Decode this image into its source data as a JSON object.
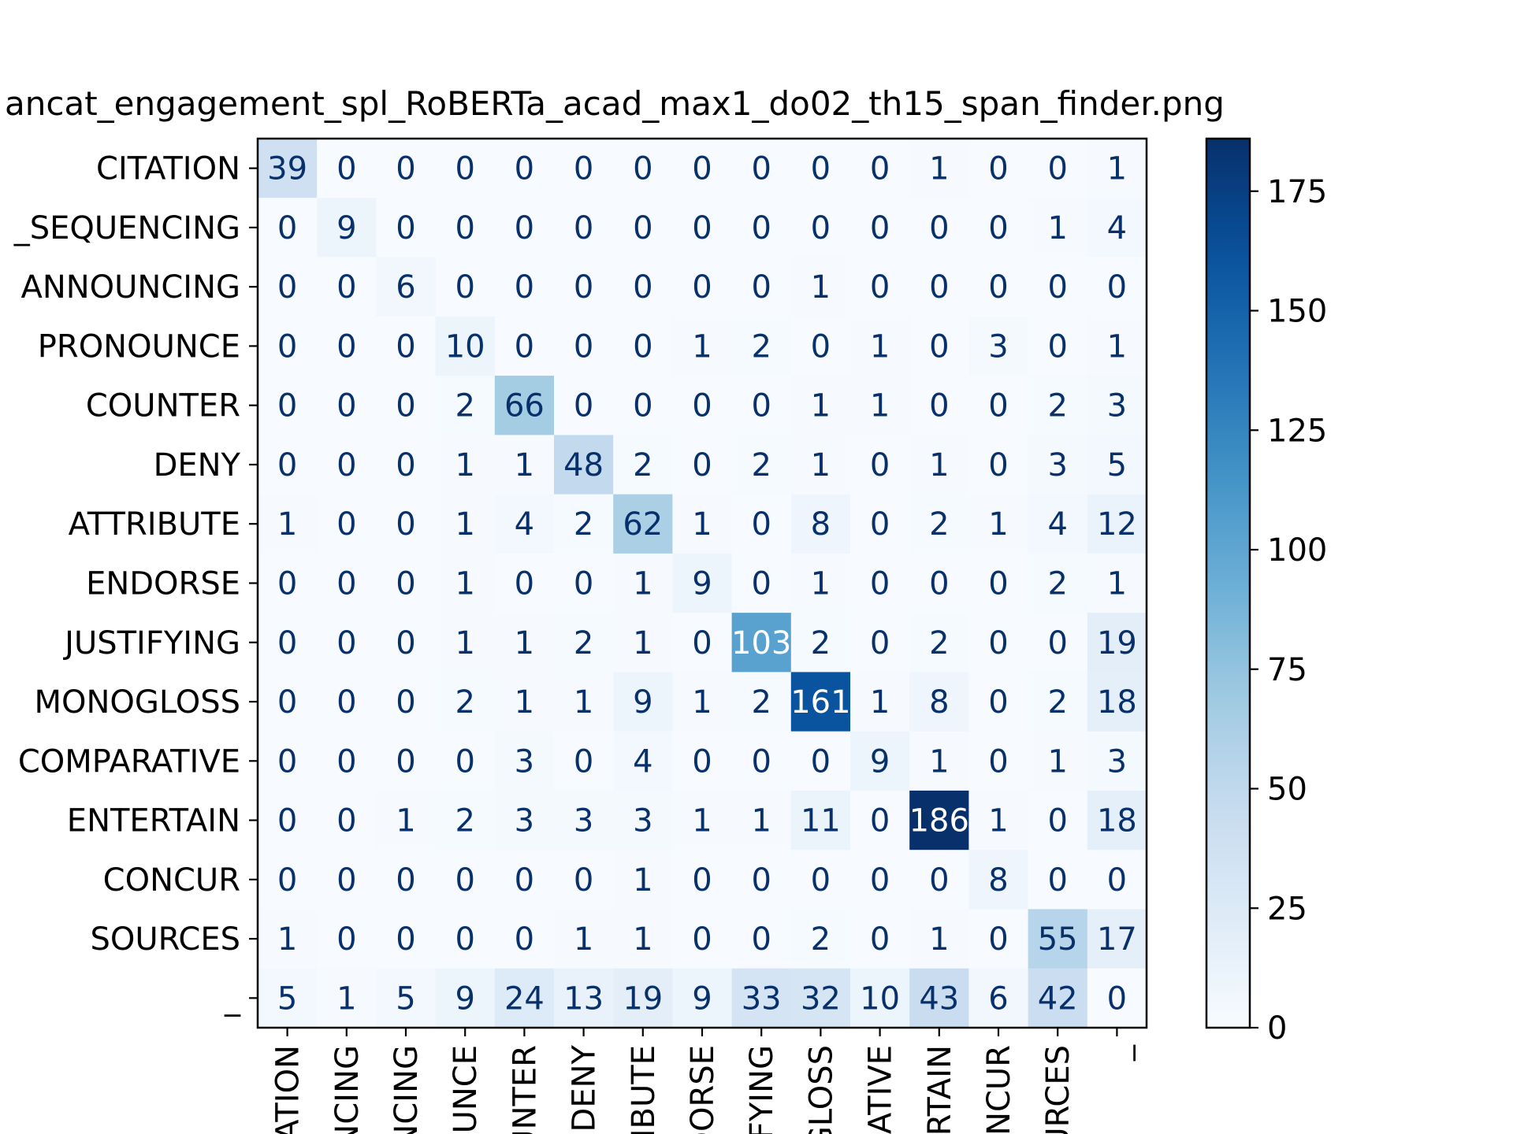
{
  "chart_data": {
    "type": "heatmap",
    "title": "ancat_engagement_spl_RoBERTa_acad_max1_do02_th15_span_finder.png",
    "row_labels": [
      "CITATION",
      "_SEQUENCING",
      "ANNOUNCING",
      "PRONOUNCE",
      "COUNTER",
      "DENY",
      "ATTRIBUTE",
      "ENDORSE",
      "JUSTIFYING",
      "MONOGLOSS",
      "COMPARATIVE",
      "ENTERTAIN",
      "CONCUR",
      "SOURCES",
      "_"
    ],
    "col_labels": [
      "ATION",
      "NCING",
      "NCING",
      "OUNCE",
      "UNTER",
      "DENY",
      "IBUTE",
      "DORSE",
      "IFYING",
      "GLOSS",
      "RATIVE",
      "RTAIN",
      "ONCUR",
      "URCES",
      "_"
    ],
    "matrix": [
      [
        39,
        0,
        0,
        0,
        0,
        0,
        0,
        0,
        0,
        0,
        0,
        1,
        0,
        0,
        1
      ],
      [
        0,
        9,
        0,
        0,
        0,
        0,
        0,
        0,
        0,
        0,
        0,
        0,
        0,
        1,
        4
      ],
      [
        0,
        0,
        6,
        0,
        0,
        0,
        0,
        0,
        0,
        1,
        0,
        0,
        0,
        0,
        0
      ],
      [
        0,
        0,
        0,
        10,
        0,
        0,
        0,
        1,
        2,
        0,
        1,
        0,
        3,
        0,
        1
      ],
      [
        0,
        0,
        0,
        2,
        66,
        0,
        0,
        0,
        0,
        1,
        1,
        0,
        0,
        2,
        3
      ],
      [
        0,
        0,
        0,
        1,
        1,
        48,
        2,
        0,
        2,
        1,
        0,
        1,
        0,
        3,
        5
      ],
      [
        1,
        0,
        0,
        1,
        4,
        2,
        62,
        1,
        0,
        8,
        0,
        2,
        1,
        4,
        12
      ],
      [
        0,
        0,
        0,
        1,
        0,
        0,
        1,
        9,
        0,
        1,
        0,
        0,
        0,
        2,
        1
      ],
      [
        0,
        0,
        0,
        1,
        1,
        2,
        1,
        0,
        103,
        2,
        0,
        2,
        0,
        0,
        19
      ],
      [
        0,
        0,
        0,
        2,
        1,
        1,
        9,
        1,
        2,
        161,
        1,
        8,
        0,
        2,
        18
      ],
      [
        0,
        0,
        0,
        0,
        3,
        0,
        4,
        0,
        0,
        0,
        9,
        1,
        0,
        1,
        3
      ],
      [
        0,
        0,
        1,
        2,
        3,
        3,
        3,
        1,
        1,
        11,
        0,
        186,
        1,
        0,
        18
      ],
      [
        0,
        0,
        0,
        0,
        0,
        0,
        1,
        0,
        0,
        0,
        0,
        0,
        8,
        0,
        0
      ],
      [
        1,
        0,
        0,
        0,
        0,
        1,
        1,
        0,
        0,
        2,
        0,
        1,
        0,
        55,
        17
      ],
      [
        5,
        1,
        5,
        9,
        24,
        13,
        19,
        9,
        33,
        32,
        10,
        43,
        6,
        42,
        0
      ]
    ],
    "colormap": "Blues",
    "vmin": 0,
    "vmax": 186,
    "colorbar_ticks": [
      0,
      25,
      50,
      75,
      100,
      125,
      150,
      175
    ]
  }
}
